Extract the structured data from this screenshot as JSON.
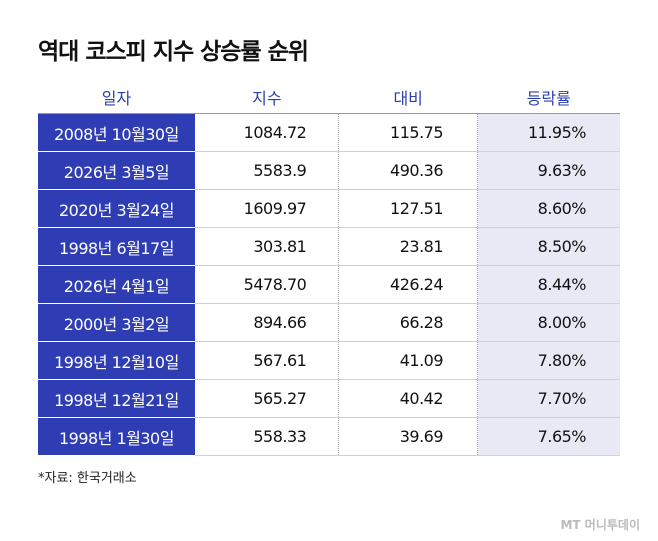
{
  "header": {
    "title": "역대 코스피 지수 상승률 순위"
  },
  "table": {
    "columns": [
      "일자",
      "지수",
      "대비",
      "등락률"
    ],
    "rows": [
      [
        "2008년 10월30일",
        "1084.72",
        "115.75",
        "11.95%"
      ],
      [
        "2026년 3월5일",
        "5583.9",
        "490.36",
        "9.63%"
      ],
      [
        "2020년 3월24일",
        "1609.97",
        "127.51",
        "8.60%"
      ],
      [
        "1998년 6월17일",
        "303.81",
        "23.81",
        "8.50%"
      ],
      [
        "2026년 4월1일",
        "5478.70",
        "426.24",
        "8.44%"
      ],
      [
        "2000년 3월2일",
        "894.66",
        "66.28",
        "8.00%"
      ],
      [
        "1998년 12월10일",
        "567.61",
        "41.09",
        "7.80%"
      ],
      [
        "1998년 12월21일",
        "565.27",
        "40.42",
        "7.70%"
      ],
      [
        "1998년 1월30일",
        "558.33",
        "39.69",
        "7.65%"
      ]
    ]
  },
  "footer": {
    "source": "*자료: 한국거래소",
    "watermark": "MT 머니투데이"
  }
}
